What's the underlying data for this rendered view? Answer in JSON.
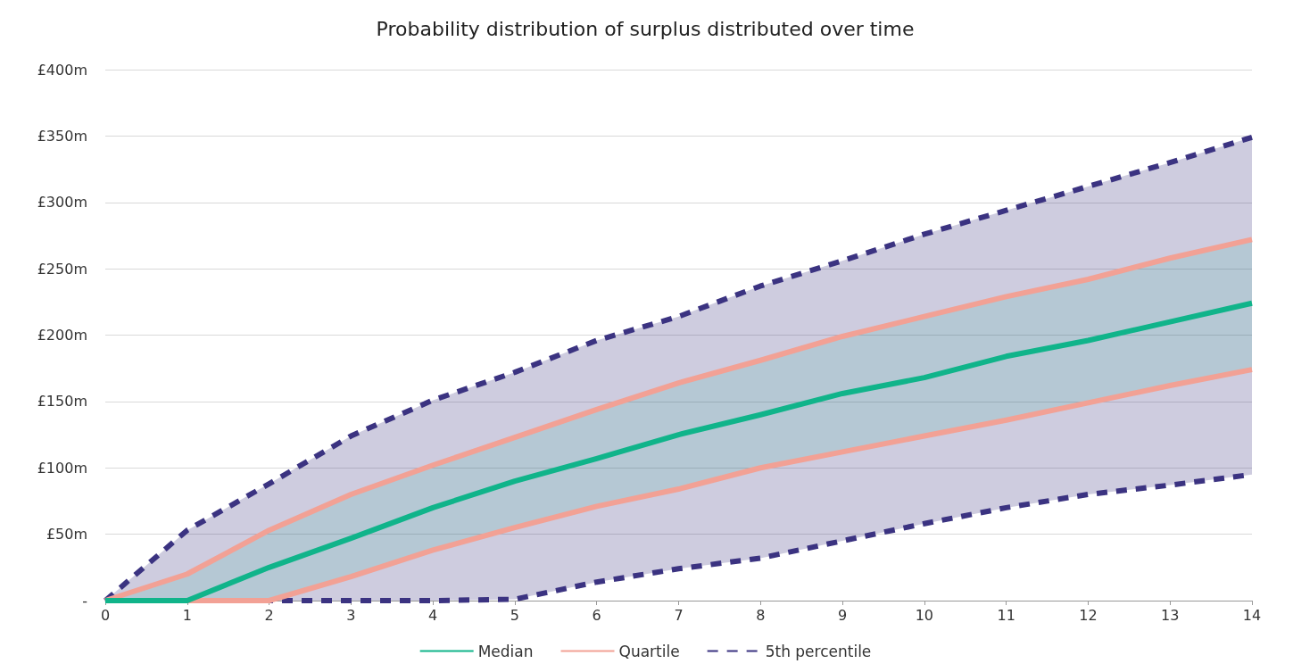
{
  "chart_data": {
    "type": "line",
    "title": "Probability distribution of surplus distributed over time",
    "x": [
      0,
      1,
      2,
      3,
      4,
      5,
      6,
      7,
      8,
      9,
      10,
      11,
      12,
      13,
      14
    ],
    "series": [
      {
        "name": "Median",
        "color": "#10b48a",
        "values": [
          0,
          0,
          25,
          47,
          70,
          90,
          107,
          125,
          140,
          156,
          168,
          184,
          196,
          210,
          224
        ],
        "lower": [
          0,
          0,
          0,
          18,
          38,
          55,
          71,
          84,
          100,
          112,
          124,
          136,
          149,
          162,
          174
        ],
        "upper": [
          0,
          20,
          53,
          80,
          102,
          123,
          144,
          164,
          181,
          199,
          214,
          229,
          242,
          258,
          272
        ]
      },
      {
        "name": "Quartile",
        "color": "#f2a195",
        "values": [
          0,
          20,
          53,
          80,
          102,
          123,
          144,
          164,
          181,
          199,
          214,
          229,
          242,
          258,
          272
        ]
      },
      {
        "color": "#f2a195",
        "values": [
          0,
          0,
          0,
          18,
          38,
          55,
          71,
          84,
          100,
          112,
          124,
          136,
          149,
          162,
          174
        ]
      },
      {
        "name": "5th percentile",
        "color": "#3b3381",
        "line_style": "dashed",
        "values": [
          0,
          53,
          88,
          124,
          151,
          172,
          196,
          214,
          237,
          256,
          276,
          294,
          312,
          330,
          349
        ],
        "lower": [
          0,
          0,
          0,
          0,
          0,
          1,
          14,
          24,
          32,
          45,
          58,
          70,
          80,
          87,
          95
        ],
        "upper": [
          0,
          53,
          88,
          124,
          151,
          172,
          196,
          214,
          237,
          256,
          276,
          294,
          312,
          330,
          349
        ]
      },
      {
        "color": "#3b3381",
        "line_style": "dashed",
        "values": [
          0,
          0,
          0,
          0,
          0,
          1,
          14,
          24,
          32,
          45,
          58,
          70,
          80,
          87,
          95
        ]
      }
    ],
    "xlim": [
      0,
      14
    ],
    "xticks": [
      0,
      1,
      2,
      3,
      4,
      5,
      6,
      7,
      8,
      9,
      10,
      11,
      12,
      13,
      14
    ],
    "ylim": [
      0,
      400
    ],
    "yticks": [
      {
        "value": 0,
        "label": "-"
      },
      {
        "value": 50,
        "label": "£50m"
      },
      {
        "value": 100,
        "label": "£100m"
      },
      {
        "value": 150,
        "label": "£150m"
      },
      {
        "value": 200,
        "label": "£200m"
      },
      {
        "value": 250,
        "label": "£250m"
      },
      {
        "value": 300,
        "label": "£300m"
      },
      {
        "value": 350,
        "label": "£350m"
      },
      {
        "value": 400,
        "label": "£400m"
      }
    ],
    "grid": "y",
    "legend": "bottom",
    "line_style": "solid",
    "marker": "none"
  }
}
